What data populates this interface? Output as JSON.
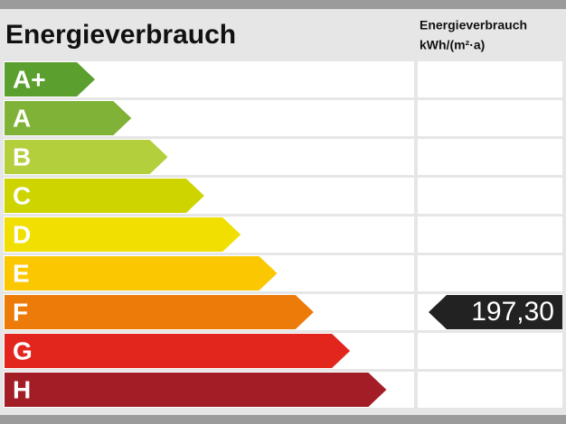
{
  "title": "Energieverbrauch",
  "column_header": [
    "Energieverbrauch",
    "kWh/(m²·a)"
  ],
  "classes": [
    {
      "label": "A+",
      "color": "#5b9f2f"
    },
    {
      "label": "A",
      "color": "#7fb236"
    },
    {
      "label": "B",
      "color": "#b4cf3c"
    },
    {
      "label": "C",
      "color": "#cdd400"
    },
    {
      "label": "D",
      "color": "#f0df00"
    },
    {
      "label": "E",
      "color": "#fbc700"
    },
    {
      "label": "F",
      "color": "#ec7b0a",
      "value": "197,30"
    },
    {
      "label": "G",
      "color": "#e2261d"
    },
    {
      "label": "H",
      "color": "#a31d26"
    }
  ]
}
